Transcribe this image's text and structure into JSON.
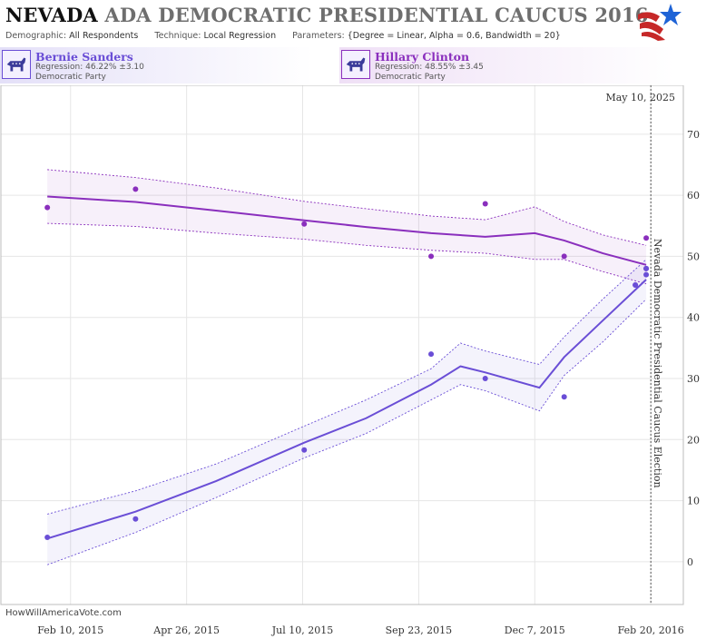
{
  "header": {
    "title_state": "NEVADA",
    "title_rest": "ADA DEMOCRATIC PRESIDENTIAL CAUCUS 2016",
    "demographic_label": "Demographic:",
    "demographic_value": "All Respondents",
    "technique_label": "Technique:",
    "technique_value": "Local Regression",
    "parameters_label": "Parameters:",
    "parameters_value": "{Degree = Linear, Alpha = 0.6, Bandwidth = 20}"
  },
  "candidates": [
    {
      "name": "Bernie Sanders",
      "regression": "Regression: 46.22% ±3.10",
      "party": "Democratic Party",
      "color": "#6a4ed6"
    },
    {
      "name": "Hillary Clinton",
      "regression": "Regression: 48.55% ±3.45",
      "party": "Democratic Party",
      "color": "#8a2fbd"
    }
  ],
  "credit": "HowWillAmericaVote.com",
  "current_date_label": "May 10, 2025",
  "event_label": "Nevada Democratic Presidential Caucus Election",
  "chart_data": {
    "type": "line",
    "x_axis": {
      "range": [
        "2014-12-27",
        "2016-03-12"
      ],
      "ticks": [
        {
          "date": "2015-02-10",
          "label": "Feb 10, 2015"
        },
        {
          "date": "2015-04-26",
          "label": "Apr 26, 2015"
        },
        {
          "date": "2015-07-10",
          "label": "Jul 10, 2015"
        },
        {
          "date": "2015-09-23",
          "label": "Sep 23, 2015"
        },
        {
          "date": "2015-12-07",
          "label": "Dec 7, 2015"
        },
        {
          "date": "2016-02-20",
          "label": "Feb 20, 2016"
        }
      ]
    },
    "y_axis": {
      "range": [
        -7,
        78
      ],
      "ticks": [
        0,
        10,
        20,
        30,
        40,
        50,
        60,
        70
      ]
    },
    "grid": true,
    "event_date": "2016-02-20",
    "series": [
      {
        "name": "Hillary Clinton",
        "color": "#8a2fbd",
        "points": [
          {
            "x": "2015-01-26",
            "y": 58.0
          },
          {
            "x": "2015-03-24",
            "y": 61.0
          },
          {
            "x": "2015-07-11",
            "y": 55.3
          },
          {
            "x": "2015-10-01",
            "y": 50.0
          },
          {
            "x": "2015-11-05",
            "y": 58.6
          },
          {
            "x": "2015-12-26",
            "y": 50.0
          },
          {
            "x": "2016-02-10",
            "y": 45.3
          },
          {
            "x": "2016-02-17",
            "y": 53.0
          },
          {
            "x": "2016-02-17",
            "y": 48.0
          }
        ],
        "fit": [
          {
            "x": "2015-01-26",
            "y": 59.8,
            "lo": 55.4,
            "hi": 64.2
          },
          {
            "x": "2015-03-24",
            "y": 58.9,
            "lo": 54.9,
            "hi": 62.9
          },
          {
            "x": "2015-05-15",
            "y": 57.5,
            "lo": 53.8,
            "hi": 61.2
          },
          {
            "x": "2015-07-11",
            "y": 55.9,
            "lo": 52.8,
            "hi": 59.0
          },
          {
            "x": "2015-08-20",
            "y": 54.8,
            "lo": 51.8,
            "hi": 57.8
          },
          {
            "x": "2015-10-01",
            "y": 53.8,
            "lo": 51.0,
            "hi": 56.6
          },
          {
            "x": "2015-11-05",
            "y": 53.2,
            "lo": 50.5,
            "hi": 56.0
          },
          {
            "x": "2015-12-07",
            "y": 53.8,
            "lo": 49.5,
            "hi": 58.1
          },
          {
            "x": "2015-12-26",
            "y": 52.6,
            "lo": 49.5,
            "hi": 55.7
          },
          {
            "x": "2016-01-20",
            "y": 50.5,
            "lo": 47.5,
            "hi": 53.5
          },
          {
            "x": "2016-02-17",
            "y": 48.6,
            "lo": 45.5,
            "hi": 51.8
          }
        ]
      },
      {
        "name": "Bernie Sanders",
        "color": "#6a4ed6",
        "points": [
          {
            "x": "2015-01-26",
            "y": 4.0
          },
          {
            "x": "2015-03-24",
            "y": 7.0
          },
          {
            "x": "2015-07-11",
            "y": 18.3
          },
          {
            "x": "2015-10-01",
            "y": 34.0
          },
          {
            "x": "2015-11-05",
            "y": 30.0
          },
          {
            "x": "2015-12-26",
            "y": 27.0
          },
          {
            "x": "2016-02-10",
            "y": 45.3
          },
          {
            "x": "2016-02-17",
            "y": 47.0
          },
          {
            "x": "2016-02-17",
            "y": 48.0
          }
        ],
        "fit": [
          {
            "x": "2015-01-26",
            "y": 3.8,
            "lo": -0.5,
            "hi": 7.8
          },
          {
            "x": "2015-03-24",
            "y": 8.2,
            "lo": 4.8,
            "hi": 11.6
          },
          {
            "x": "2015-05-15",
            "y": 13.2,
            "lo": 10.5,
            "hi": 16.0
          },
          {
            "x": "2015-07-11",
            "y": 19.5,
            "lo": 17.0,
            "hi": 22.2
          },
          {
            "x": "2015-08-20",
            "y": 23.5,
            "lo": 21.0,
            "hi": 26.5
          },
          {
            "x": "2015-10-01",
            "y": 29.0,
            "lo": 26.5,
            "hi": 31.6
          },
          {
            "x": "2015-10-20",
            "y": 32.0,
            "lo": 29.0,
            "hi": 35.8
          },
          {
            "x": "2015-11-05",
            "y": 31.0,
            "lo": 28.0,
            "hi": 34.5
          },
          {
            "x": "2015-12-10",
            "y": 28.5,
            "lo": 24.7,
            "hi": 32.3
          },
          {
            "x": "2015-12-26",
            "y": 33.5,
            "lo": 30.5,
            "hi": 36.8
          },
          {
            "x": "2016-01-20",
            "y": 39.5,
            "lo": 36.0,
            "hi": 43.0
          },
          {
            "x": "2016-02-17",
            "y": 46.2,
            "lo": 43.0,
            "hi": 49.5
          }
        ]
      }
    ]
  }
}
